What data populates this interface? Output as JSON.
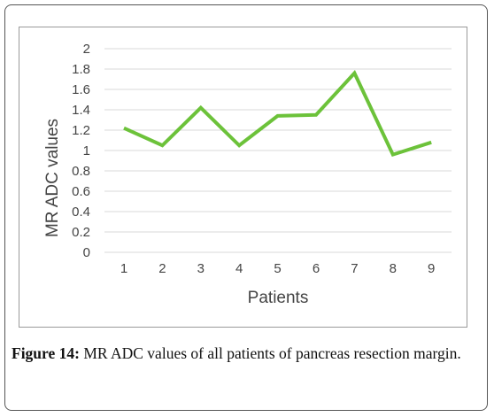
{
  "chart_data": {
    "type": "line",
    "categories": [
      "1",
      "2",
      "3",
      "4",
      "5",
      "6",
      "7",
      "8",
      "9"
    ],
    "series": [
      {
        "values": [
          1.22,
          1.05,
          1.42,
          1.05,
          1.34,
          1.35,
          1.76,
          0.96,
          1.08
        ],
        "color": "#6cc23a"
      }
    ],
    "xlabel": "Patients",
    "ylabel": "MR ADC values",
    "ylim": [
      0,
      2
    ],
    "yticks": [
      "0",
      "0.2",
      "0.4",
      "0.6",
      "0.8",
      "1",
      "1.2",
      "1.4",
      "1.6",
      "1.8",
      "2"
    ],
    "grid": true,
    "gridColor": "#d9d9d9"
  },
  "caption": {
    "label": "Figure 14:",
    "text": "MR ADC values of all patients of pancreas resection margin."
  }
}
